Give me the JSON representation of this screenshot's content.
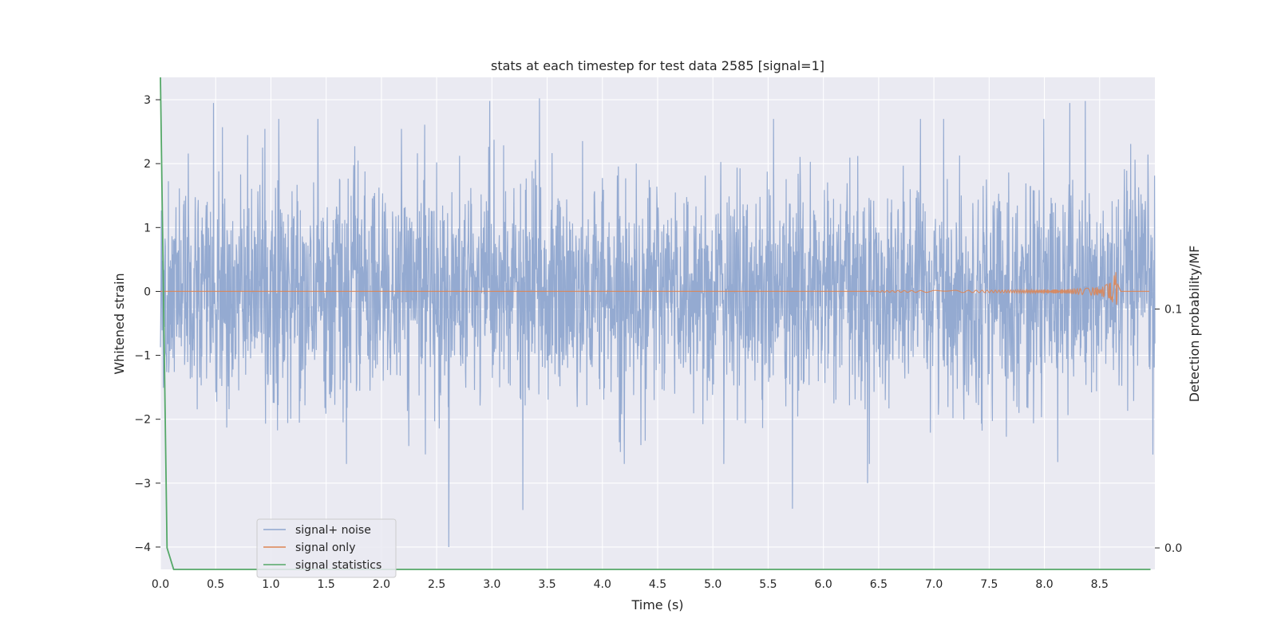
{
  "chart_data": {
    "type": "line",
    "title": "stats at each timestep for test data 2585 [signal=1]",
    "xlabel": "Time (s)",
    "ylabel": "Whitened strain",
    "ylabel_right": "Detection probability/MF",
    "xlim": [
      0.0,
      9.0
    ],
    "ylim": [
      -4.35,
      3.35
    ],
    "ylim_right": [
      -0.009,
      0.197
    ],
    "x_ticks": [
      "0.0",
      "0.5",
      "1.0",
      "1.5",
      "2.0",
      "2.5",
      "3.0",
      "3.5",
      "4.0",
      "4.5",
      "5.0",
      "5.5",
      "6.0",
      "6.5",
      "7.0",
      "7.5",
      "8.0",
      "8.5"
    ],
    "y_ticks": [
      "3",
      "2",
      "1",
      "0",
      "−1",
      "−2",
      "−3",
      "−4"
    ],
    "y_ticks_right": [
      "0.1",
      "0.0"
    ],
    "grid": true,
    "legend_placement": "lower-left",
    "series": [
      {
        "name": "signal+ noise",
        "color": "#8fa6cf",
        "description_values": {
          "duration_s": 9.0,
          "typical_range": [
            -2.5,
            2.5
          ],
          "max_peaks": [
            [
              0.48,
              2.95
            ],
            [
              2.98,
              2.98
            ],
            [
              3.43,
              3.02
            ],
            [
              8.23,
              2.95
            ],
            [
              8.37,
              2.98
            ]
          ],
          "min_peaks": [
            [
              2.61,
              -4.0
            ],
            [
              3.28,
              -3.42
            ],
            [
              5.72,
              -3.4
            ],
            [
              6.4,
              -3.0
            ]
          ]
        }
      },
      {
        "name": "signal only",
        "color": "#dd8452",
        "description_values": {
          "baseline": 0.0,
          "chirp_peak_time": 8.66,
          "chirp_peak_amplitude": 0.33
        }
      },
      {
        "name": "signal statistics",
        "color": "#55a868",
        "axis": "right",
        "x": [
          0.0,
          0.06,
          0.12,
          8.96
        ],
        "values": [
          0.197,
          0.0,
          -0.009,
          -0.009
        ]
      }
    ],
    "right_axis_gridline_value": 0.1
  },
  "colors": {
    "plot_background": "#eaeaf2",
    "grid": "#ffffff",
    "text": "#262626"
  }
}
